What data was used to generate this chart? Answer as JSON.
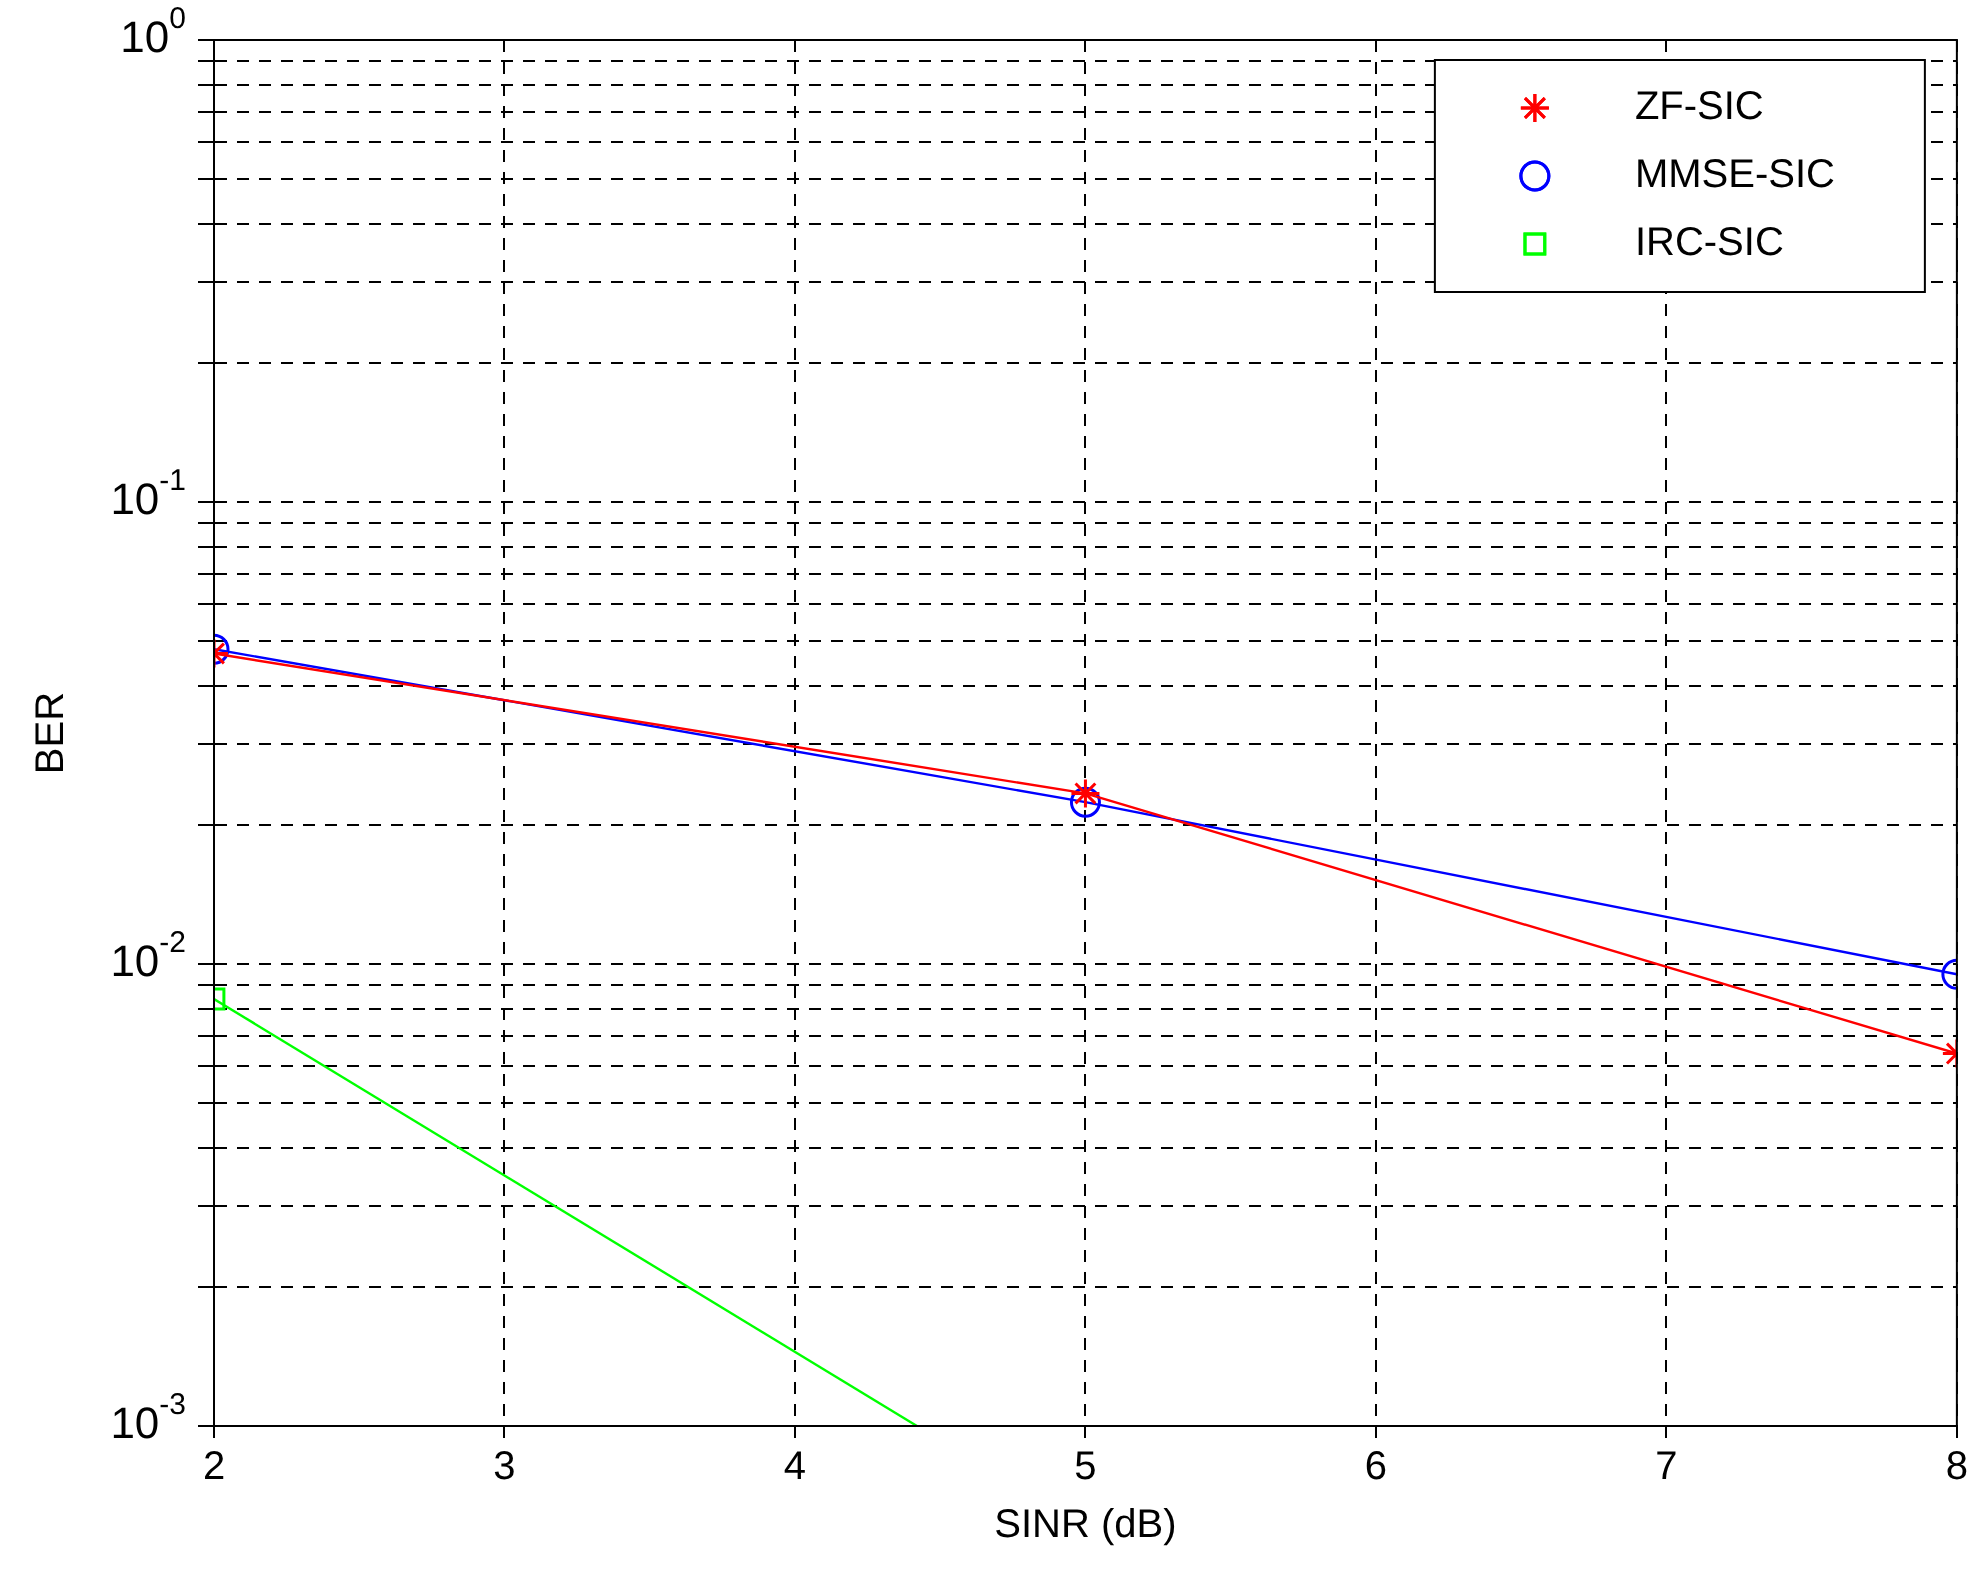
{
  "chart_data": {
    "type": "line",
    "xlabel": "SINR (dB)",
    "ylabel": "BER",
    "log": "y",
    "grid": true,
    "legend": "top right",
    "xlim": [
      2,
      8
    ],
    "xticks": [
      2,
      3,
      4,
      5,
      6,
      7,
      8
    ],
    "ylim": [
      0.001,
      1
    ],
    "yticks": [
      {
        "value": 0.001,
        "label": "10$^{-3}$"
      },
      {
        "value": 0.002,
        "label": null
      },
      {
        "value": 0.003,
        "label": null
      },
      {
        "value": 0.004,
        "label": null
      },
      {
        "value": 0.005,
        "label": null
      },
      {
        "value": 0.006,
        "label": null
      },
      {
        "value": 0.007,
        "label": null
      },
      {
        "value": 0.008,
        "label": null
      },
      {
        "value": 0.009,
        "label": null
      },
      {
        "value": 0.01,
        "label": "10$^{-2}$"
      },
      {
        "value": 0.02,
        "label": null
      },
      {
        "value": 0.03,
        "label": null
      },
      {
        "value": 0.04,
        "label": null
      },
      {
        "value": 0.05,
        "label": null
      },
      {
        "value": 0.06,
        "label": null
      },
      {
        "value": 0.07,
        "label": null
      },
      {
        "value": 0.08,
        "label": null
      },
      {
        "value": 0.09,
        "label": null
      },
      {
        "value": 0.1,
        "label": "10$^{-1}$"
      },
      {
        "value": 0.2,
        "label": null
      },
      {
        "value": 0.3,
        "label": null
      },
      {
        "value": 0.4,
        "label": null
      },
      {
        "value": 0.5,
        "label": null
      },
      {
        "value": 0.6,
        "label": null
      },
      {
        "value": 0.7,
        "label": null
      },
      {
        "value": 0.8,
        "label": null
      },
      {
        "value": 0.9,
        "label": null
      },
      {
        "value": 1,
        "label": "10$^{0}$"
      }
    ],
    "series": [
      {
        "name": "ZF-SIC",
        "color": "#ff0000",
        "marker": "cross",
        "x": [
          2,
          5,
          8
        ],
        "values": [
          0.047,
          0.0234,
          0.0064
        ]
      },
      {
        "name": "MMSE-SIC",
        "color": "#0000ff",
        "marker": "circle",
        "x": [
          2,
          5,
          8
        ],
        "values": [
          0.048,
          0.0224,
          0.0095
        ]
      },
      {
        "name": "IRC-SIC",
        "color": "#00ff00",
        "marker": "square",
        "x": [
          2,
          4.42
        ],
        "values": [
          0.0084,
          0.001
        ]
      }
    ]
  }
}
